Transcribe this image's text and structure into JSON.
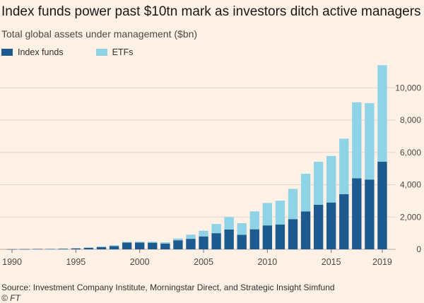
{
  "header": {
    "title": "Index funds power past $10tn mark as investors ditch active managers",
    "subtitle": "Total global assets under management ($bn)"
  },
  "footer": {
    "source": "Source: Investment Company Institute, Morningstar Direct, and Strategic Insight Simfund",
    "copyright": "© FT"
  },
  "colors": {
    "background": "#fff1e5",
    "index_funds": "#1c5a8f",
    "etfs": "#8fd3e6",
    "grid": "#e2d6cc",
    "axis_text": "#4d4845"
  },
  "chart_data": {
    "type": "bar",
    "stacked": true,
    "title": "Index funds power past $10tn mark as investors ditch active managers",
    "subtitle": "Total global assets under management ($bn)",
    "xlabel": "",
    "ylabel": "",
    "categories": [
      1990,
      1991,
      1992,
      1993,
      1994,
      1995,
      1996,
      1997,
      1998,
      1999,
      2000,
      2001,
      2002,
      2003,
      2004,
      2005,
      2006,
      2007,
      2008,
      2009,
      2010,
      2011,
      2012,
      2013,
      2014,
      2015,
      2016,
      2017,
      2018,
      2019
    ],
    "series": [
      {
        "name": "Index funds",
        "color": "#1c5a8f",
        "values": [
          10,
          15,
          25,
          30,
          40,
          60,
          90,
          140,
          200,
          420,
          420,
          410,
          360,
          560,
          650,
          800,
          1000,
          1230,
          900,
          1240,
          1480,
          1540,
          1870,
          2350,
          2760,
          2900,
          3410,
          4400,
          4320,
          5430
        ]
      },
      {
        "name": "ETFs",
        "color": "#8fd3e6",
        "values": [
          0,
          0,
          0,
          10,
          15,
          20,
          30,
          40,
          50,
          40,
          50,
          60,
          80,
          110,
          260,
          350,
          570,
          770,
          720,
          1110,
          1390,
          1470,
          1870,
          2330,
          2660,
          2880,
          3440,
          4700,
          4730,
          5970
        ]
      }
    ],
    "x_ticks": [
      "1990",
      "1995",
      "2000",
      "2005",
      "2010",
      "2015",
      "2019"
    ],
    "y_ticks": [
      "0",
      "2,000",
      "4,000",
      "6,000",
      "8,000",
      "10,000"
    ],
    "ylim": [
      0,
      11500
    ],
    "y_axis_position": "right",
    "grid": true,
    "legend": "top-left"
  }
}
